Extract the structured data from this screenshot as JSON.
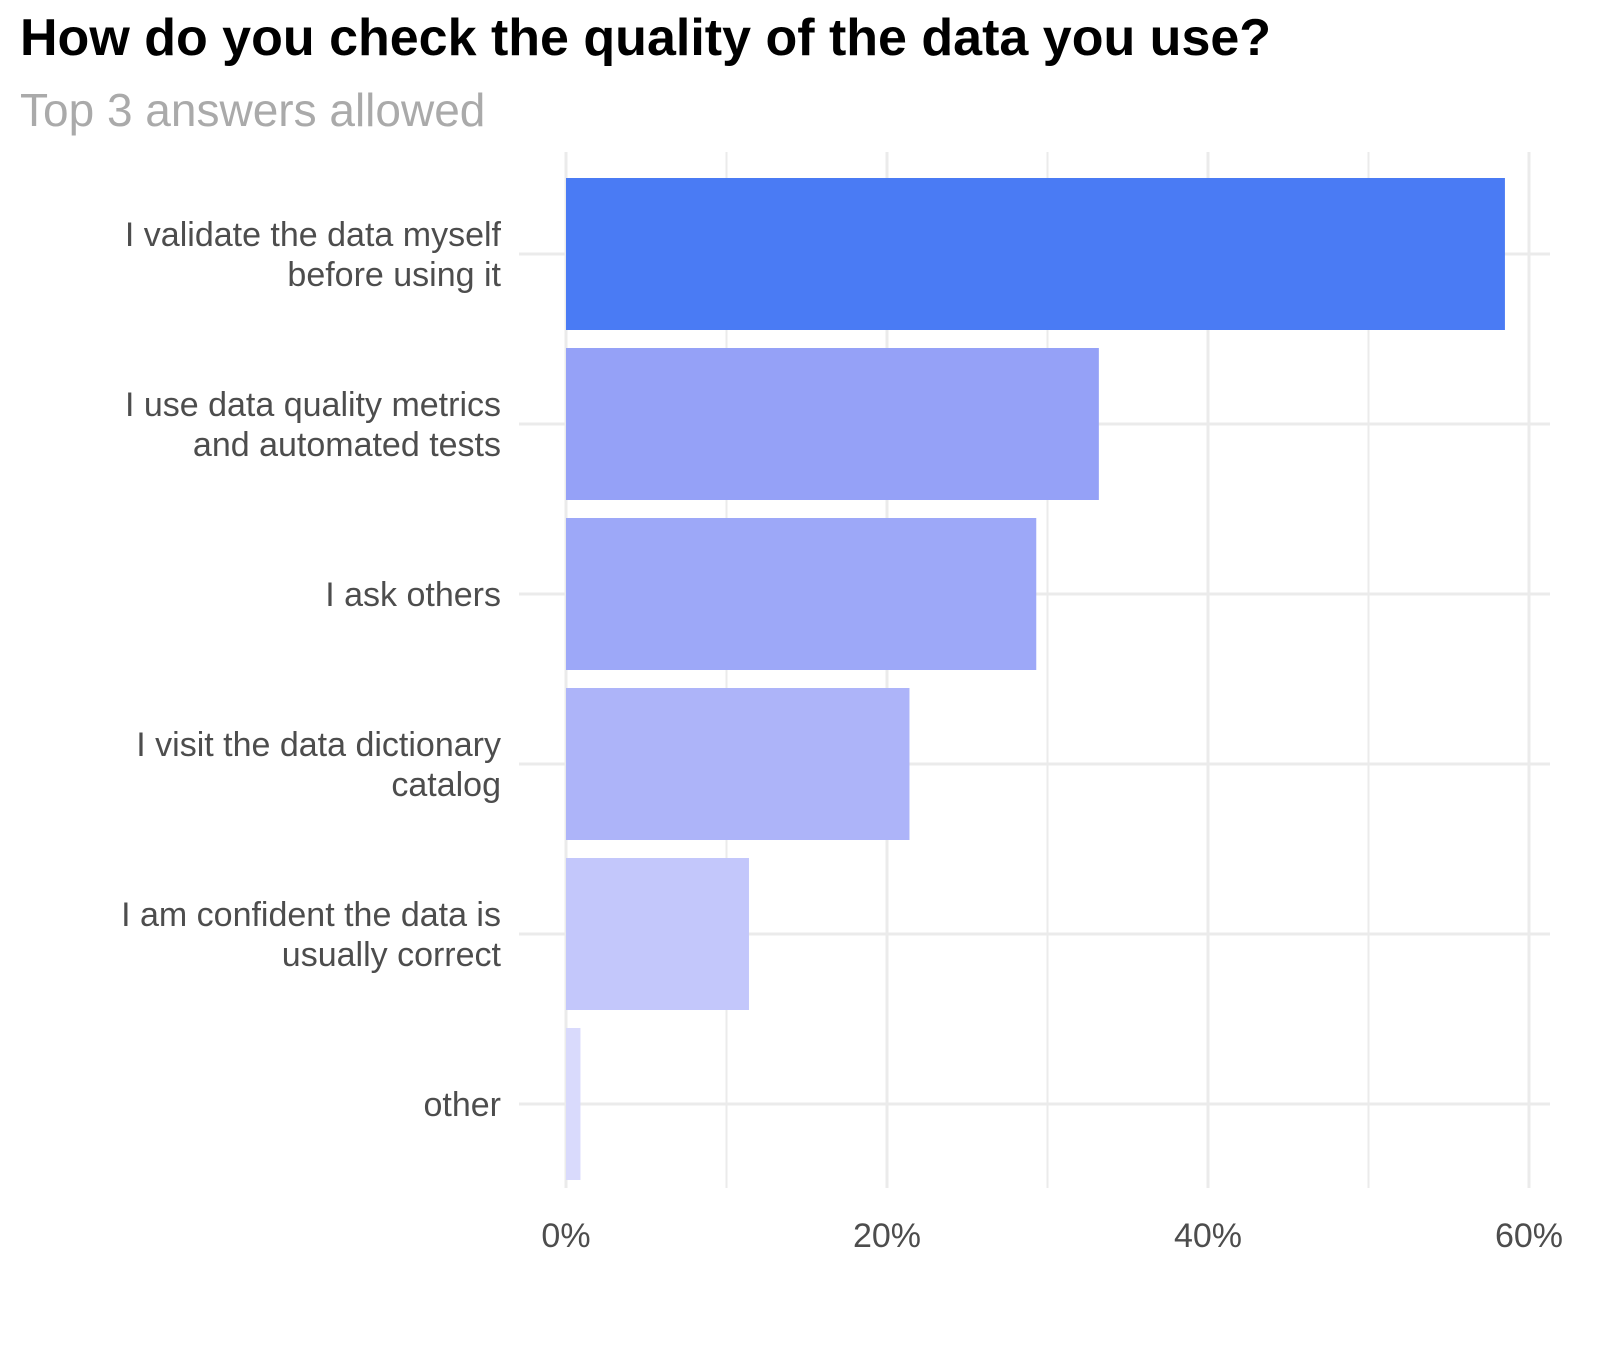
{
  "chart_data": {
    "type": "bar",
    "orientation": "horizontal",
    "title": "How do you check the quality of the data you use?",
    "subtitle": "Top 3 answers allowed",
    "categories": [
      [
        "I validate the data myself ",
        "before using it"
      ],
      [
        "I use data quality metrics ",
        "and automated tests"
      ],
      [
        "I ask others"
      ],
      [
        "I visit the data dictionary ",
        "catalog"
      ],
      [
        "I am confident the data is ",
        "usually correct"
      ],
      [
        "other"
      ]
    ],
    "values": [
      58.5,
      33.2,
      29.3,
      21.4,
      11.4,
      0.9
    ],
    "xlim": [
      0,
      60
    ],
    "x_ticks": [
      0,
      20,
      40,
      60
    ],
    "x_tick_labels": [
      "0%",
      "20%",
      "40%",
      "60%"
    ],
    "grid": true,
    "colors": [
      "#4a7bf4",
      "#95a1f7",
      "#9da8f8",
      "#adb4f9",
      "#c3c7fb",
      "#d9dafc"
    ],
    "grid_color": "#ebebeb"
  }
}
